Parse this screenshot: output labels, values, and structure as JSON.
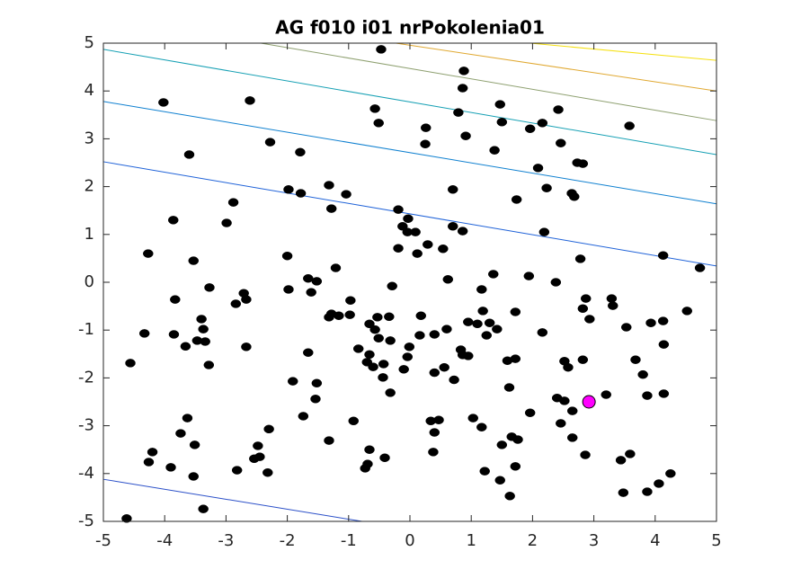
{
  "chart_data": {
    "type": "scatter",
    "title": "AG f010 i01 nrPokolenia01",
    "xlim": [
      -5,
      5
    ],
    "ylim": [
      -5,
      5
    ],
    "xticks": [
      -5,
      -4,
      -3,
      -2,
      -1,
      0,
      1,
      2,
      3,
      4,
      5
    ],
    "yticks": [
      -5,
      -4,
      -3,
      -2,
      -1,
      0,
      1,
      2,
      3,
      4,
      5
    ],
    "contours": [
      {
        "color": "#2a4fc8",
        "x": [
          -5,
          -0.78
        ],
        "y": [
          -4.12,
          -5
        ]
      },
      {
        "color": "#1f62d8",
        "x": [
          -5,
          5
        ],
        "y": [
          2.52,
          0.34
        ]
      },
      {
        "color": "#0f80d0",
        "x": [
          -5,
          5
        ],
        "y": [
          3.78,
          1.64
        ]
      },
      {
        "color": "#16a0b4",
        "x": [
          -5,
          5
        ],
        "y": [
          4.87,
          2.67
        ]
      },
      {
        "color": "#8ea070",
        "x": [
          -2.43,
          5
        ],
        "y": [
          5,
          3.38
        ]
      },
      {
        "color": "#e0a830",
        "x": [
          -0.23,
          5
        ],
        "y": [
          5,
          4.0
        ]
      },
      {
        "color": "#f5e010",
        "x": [
          1.96,
          5
        ],
        "y": [
          5,
          4.64
        ]
      }
    ],
    "series": [
      {
        "color": "#000000",
        "x": [
          -0.47,
          0.88,
          0.86,
          -4.02,
          -2.61,
          -0.57,
          1.47,
          2.42,
          0.79,
          -0.51,
          1.5,
          2.16,
          3.58,
          0.26,
          1.96,
          0.91,
          -2.28,
          0.25,
          2.46,
          1.38,
          -1.79,
          -3.6,
          2.73,
          2.82,
          2.09,
          -1.32,
          -1.98,
          -1.78,
          -1.04,
          0.7,
          2.23,
          2.64,
          2.68,
          1.74,
          -2.88,
          -1.28,
          -0.19,
          -3.86,
          -2.99,
          -0.03,
          -0.12,
          0.7,
          0.86,
          -0.04,
          0.09,
          2.19,
          0.29,
          -0.19,
          0.54,
          0.12,
          -4.27,
          -2.0,
          4.13,
          2.78,
          -3.53,
          -1.21,
          4.73,
          1.36,
          1.94,
          -1.66,
          -1.52,
          0.62,
          2.38,
          -3.27,
          -1.98,
          -1.61,
          -0.29,
          1.17,
          -2.71,
          -2.67,
          -3.83,
          2.87,
          3.29,
          -2.84,
          -0.97,
          3.31,
          2.82,
          1.19,
          4.52,
          -1.28,
          -1.16,
          -0.98,
          -1.32,
          -0.53,
          -0.34,
          0.18,
          1.72,
          2.93,
          -3.4,
          -0.66,
          0.95,
          1.1,
          1.3,
          3.93,
          4.13,
          3.53,
          -3.37,
          1.42,
          -0.57,
          0.6,
          -4.33,
          -3.85,
          2.16,
          0.4,
          0.16,
          -0.51,
          -3.47,
          -3.34,
          -0.32,
          1.25,
          -3.66,
          -2.67,
          -0.84,
          -0.01,
          4.14,
          0.83,
          -1.66,
          -0.66,
          0.86,
          0.95,
          -0.04,
          2.82,
          3.68,
          1.59,
          1.72,
          2.52,
          -4.56,
          -3.28,
          -0.7,
          -0.6,
          -0.43,
          0.56,
          2.58,
          -0.1,
          0.4,
          3.8,
          0.72,
          -1.91,
          -1.52,
          -0.44,
          1.62,
          -0.32,
          3.87,
          4.14,
          3.2,
          2.4,
          -1.54,
          2.52,
          2.65,
          1.96,
          -1.74,
          -3.63,
          -0.92,
          0.34,
          0.47,
          1.03,
          2.46,
          -2.3,
          1.17,
          0.4,
          -3.74,
          1.66,
          1.76,
          2.65,
          -1.32,
          -3.51,
          1.5,
          -2.48,
          -4.2,
          -0.66,
          0.38,
          3.59,
          2.86,
          -4.26,
          -2.45,
          -2.54,
          -0.41,
          3.44,
          -0.69,
          -3.9,
          -0.73,
          -2.82,
          -2.32,
          1.72,
          1.22,
          4.25,
          -3.53,
          1.47,
          4.06,
          3.87,
          3.48,
          1.63,
          -3.37,
          -4.62
        ],
        "y": [
          4.87,
          4.42,
          4.06,
          3.76,
          3.8,
          3.63,
          3.72,
          3.61,
          3.55,
          3.33,
          3.35,
          3.33,
          3.27,
          3.23,
          3.21,
          3.06,
          2.93,
          2.89,
          2.91,
          2.76,
          2.72,
          2.67,
          2.5,
          2.48,
          2.39,
          2.03,
          1.94,
          1.86,
          1.84,
          1.94,
          1.97,
          1.86,
          1.79,
          1.73,
          1.67,
          1.54,
          1.52,
          1.3,
          1.24,
          1.33,
          1.17,
          1.17,
          1.07,
          1.05,
          1.05,
          1.05,
          0.79,
          0.71,
          0.7,
          0.6,
          0.6,
          0.55,
          0.56,
          0.49,
          0.45,
          0.3,
          0.3,
          0.17,
          0.13,
          0.08,
          0.02,
          0.06,
          0.0,
          -0.11,
          -0.15,
          -0.21,
          -0.08,
          -0.15,
          -0.23,
          -0.36,
          -0.36,
          -0.34,
          -0.34,
          -0.45,
          -0.38,
          -0.49,
          -0.55,
          -0.6,
          -0.6,
          -0.66,
          -0.7,
          -0.68,
          -0.73,
          -0.73,
          -0.72,
          -0.7,
          -0.62,
          -0.77,
          -0.77,
          -0.87,
          -0.83,
          -0.87,
          -0.85,
          -0.85,
          -0.81,
          -0.94,
          -0.98,
          -0.98,
          -0.99,
          -0.98,
          -1.07,
          -1.09,
          -1.05,
          -1.09,
          -1.11,
          -1.17,
          -1.22,
          -1.24,
          -1.22,
          -1.11,
          -1.34,
          -1.35,
          -1.39,
          -1.35,
          -1.3,
          -1.41,
          -1.47,
          -1.51,
          -1.52,
          -1.54,
          -1.56,
          -1.62,
          -1.62,
          -1.64,
          -1.6,
          -1.65,
          -1.69,
          -1.73,
          -1.67,
          -1.77,
          -1.71,
          -1.78,
          -1.78,
          -1.82,
          -1.89,
          -1.93,
          -2.04,
          -2.07,
          -2.11,
          -1.99,
          -2.2,
          -2.31,
          -2.37,
          -2.33,
          -2.35,
          -2.42,
          -2.44,
          -2.48,
          -2.69,
          -2.73,
          -2.8,
          -2.84,
          -2.9,
          -2.9,
          -2.88,
          -2.84,
          -2.95,
          -3.07,
          -3.03,
          -3.14,
          -3.16,
          -3.23,
          -3.29,
          -3.25,
          -3.31,
          -3.4,
          -3.4,
          -3.42,
          -3.55,
          -3.5,
          -3.55,
          -3.59,
          -3.61,
          -3.76,
          -3.65,
          -3.69,
          -3.67,
          -3.72,
          -3.8,
          -3.87,
          -3.89,
          -3.93,
          -3.98,
          -3.85,
          -3.95,
          -4.0,
          -4.06,
          -4.14,
          -4.21,
          -4.38,
          -4.4,
          -4.47,
          -4.74,
          -4.94
        ]
      },
      {
        "color": "#ff00ff",
        "x": [
          2.92
        ],
        "y": [
          -2.5
        ]
      }
    ]
  }
}
